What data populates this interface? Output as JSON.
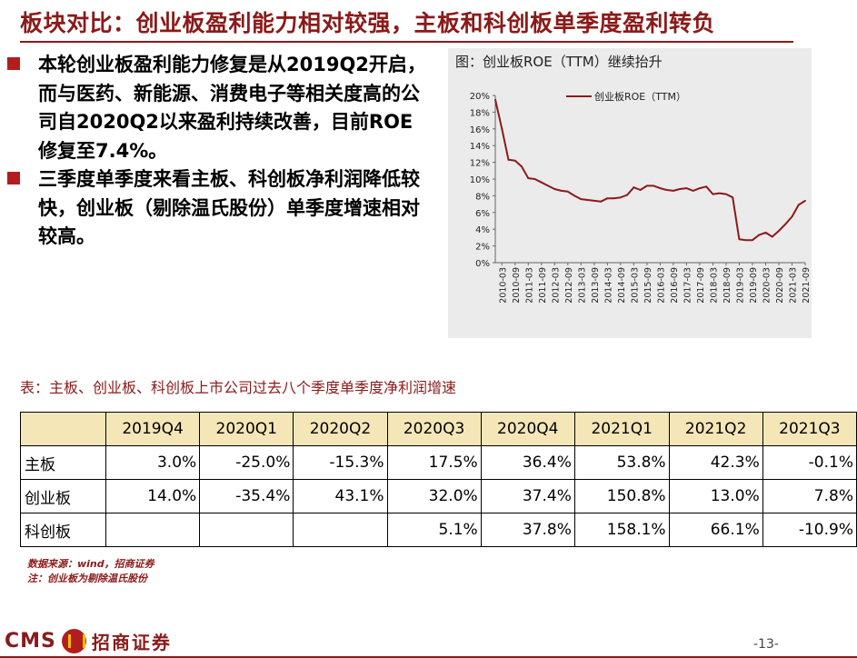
{
  "title": "板块对比：创业板盈利能力相对较强，主板和科创板单季度盈利转负",
  "paragraphs": [
    "本轮创业板盈利能力修复是从2019Q2开启，而与医药、新能源、消费电子等相关度高的公司自2020Q2以来盈利持续改善，目前ROE修复至7.4%。",
    "三季度单季度来看主板、科创板净利润降低较快，创业板（剔除温氏股份）单季度增速相对较高。"
  ],
  "chart_title": "图：创业板ROE（TTM）继续抬升",
  "chart_data": {
    "type": "line",
    "title": "图：创业板ROE（TTM）继续抬升",
    "legend_placement": "top",
    "ylim": [
      0,
      20
    ],
    "y_ticks": [
      "0%",
      "2%",
      "4%",
      "6%",
      "8%",
      "10%",
      "12%",
      "14%",
      "16%",
      "18%",
      "20%"
    ],
    "x_tick_labels": [
      "2010-03",
      "2010-09",
      "2011-03",
      "2011-09",
      "2012-03",
      "2012-09",
      "2013-03",
      "2013-09",
      "2014-03",
      "2014-09",
      "2015-03",
      "2015-09",
      "2016-03",
      "2016-09",
      "2017-03",
      "2017-09",
      "2018-03",
      "2018-09",
      "2019-03",
      "2019-09",
      "2020-03",
      "2020-09",
      "2021-03",
      "2021-09"
    ],
    "series": [
      {
        "name": "创业板ROE（TTM）",
        "color": "#8b1a1a",
        "x": [
          "2009-12",
          "2010-03",
          "2010-06",
          "2010-09",
          "2010-12",
          "2011-03",
          "2011-06",
          "2011-09",
          "2011-12",
          "2012-03",
          "2012-06",
          "2012-09",
          "2012-12",
          "2013-03",
          "2013-06",
          "2013-09",
          "2013-12",
          "2014-03",
          "2014-06",
          "2014-09",
          "2014-12",
          "2015-03",
          "2015-06",
          "2015-09",
          "2015-12",
          "2016-03",
          "2016-06",
          "2016-09",
          "2016-12",
          "2017-03",
          "2017-06",
          "2017-09",
          "2017-12",
          "2018-03",
          "2018-06",
          "2018-09",
          "2018-12",
          "2019-03",
          "2019-06",
          "2019-09",
          "2019-12",
          "2020-03",
          "2020-06",
          "2020-09",
          "2020-12",
          "2021-03",
          "2021-06",
          "2021-09"
        ],
        "values": [
          19.5,
          16.0,
          12.3,
          12.2,
          11.5,
          10.1,
          10.0,
          9.6,
          9.2,
          8.8,
          8.6,
          8.5,
          8.0,
          7.6,
          7.5,
          7.4,
          7.3,
          7.7,
          7.7,
          7.8,
          8.1,
          9.0,
          8.7,
          9.2,
          9.2,
          8.9,
          8.7,
          8.6,
          8.8,
          8.9,
          8.6,
          8.9,
          9.1,
          8.2,
          8.3,
          8.2,
          7.8,
          2.8,
          2.7,
          2.7,
          3.3,
          3.6,
          3.1,
          3.8,
          4.6,
          5.5,
          6.9,
          7.4
        ]
      }
    ]
  },
  "table": {
    "caption": "表：主板、创业板、科创板上市公司过去八个季度单季度净利润增速",
    "headers": [
      "",
      "2019Q4",
      "2020Q1",
      "2020Q2",
      "2020Q3",
      "2020Q4",
      "2021Q1",
      "2021Q2",
      "2021Q3"
    ],
    "rows": [
      {
        "label": "主板",
        "values": [
          "3.0%",
          "-25.0%",
          "-15.3%",
          "17.5%",
          "36.4%",
          "53.8%",
          "42.3%",
          "-0.1%"
        ]
      },
      {
        "label": "创业板",
        "values": [
          "14.0%",
          "-35.4%",
          "43.1%",
          "32.0%",
          "37.4%",
          "150.8%",
          "13.0%",
          "7.8%"
        ]
      },
      {
        "label": "科创板",
        "values": [
          "",
          "",
          "",
          "5.1%",
          "37.8%",
          "158.1%",
          "66.1%",
          "-10.9%"
        ]
      }
    ]
  },
  "notes": [
    "数据来源：wind，招商证券",
    "注：创业板为剔除温氏股份"
  ],
  "footer": {
    "logo_text": "CMS",
    "logo_cn": "招商证券",
    "page": "-13-"
  },
  "colors": {
    "brand": "#8b1a1a",
    "bullet": "#b21e1e",
    "chart_bg": "#ebebeb",
    "table_header": "#f5e6b8"
  }
}
